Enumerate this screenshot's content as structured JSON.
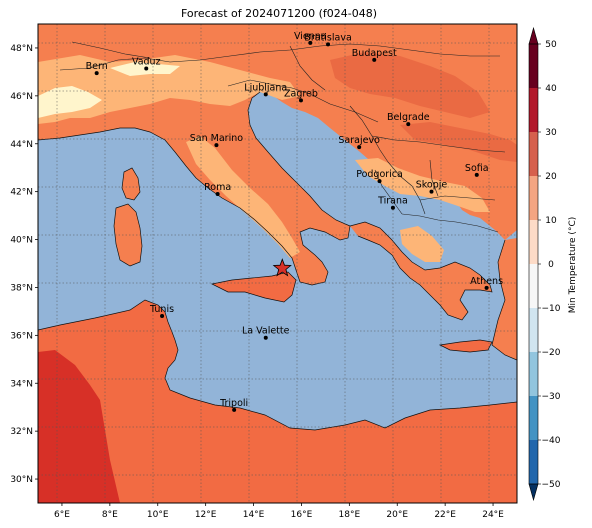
{
  "title": "Forecast of 2024071200 (f024-048)",
  "map": {
    "lon_range": [
      5,
      25
    ],
    "lat_range": [
      29,
      49
    ],
    "x_ticks": [
      "6°E",
      "8°E",
      "10°E",
      "12°E",
      "14°E",
      "16°E",
      "18°E",
      "20°E",
      "22°E",
      "24°E"
    ],
    "y_ticks": [
      "30°N",
      "32°N",
      "34°N",
      "36°N",
      "38°N",
      "40°N",
      "42°N",
      "44°N",
      "46°N",
      "48°N"
    ],
    "grid": "dotted",
    "sea_color": "#92b4d8",
    "marker": {
      "symbol": "star",
      "lon": 15.2,
      "lat": 38.8,
      "color": "#d73027"
    }
  },
  "cities": [
    {
      "name": "Bern",
      "lon": 7.45,
      "lat": 46.95
    },
    {
      "name": "Vaduz",
      "lon": 9.52,
      "lat": 47.14
    },
    {
      "name": "Vienna",
      "lon": 16.37,
      "lat": 48.21
    },
    {
      "name": "Bratislava",
      "lon": 17.11,
      "lat": 48.15
    },
    {
      "name": "Budapest",
      "lon": 19.04,
      "lat": 47.5
    },
    {
      "name": "Ljubljana",
      "lon": 14.51,
      "lat": 46.06
    },
    {
      "name": "Zagreb",
      "lon": 15.98,
      "lat": 45.81
    },
    {
      "name": "Belgrade",
      "lon": 20.46,
      "lat": 44.82
    },
    {
      "name": "San Marino",
      "lon": 12.45,
      "lat": 43.94
    },
    {
      "name": "Sarajevo",
      "lon": 18.41,
      "lat": 43.86
    },
    {
      "name": "Sofia",
      "lon": 23.32,
      "lat": 42.7
    },
    {
      "name": "Podgorica",
      "lon": 19.26,
      "lat": 42.44
    },
    {
      "name": "Skopje",
      "lon": 21.43,
      "lat": 42.0
    },
    {
      "name": "Roma",
      "lon": 12.5,
      "lat": 41.9
    },
    {
      "name": "Tirana",
      "lon": 19.82,
      "lat": 41.33
    },
    {
      "name": "Athens",
      "lon": 23.73,
      "lat": 37.98
    },
    {
      "name": "Tunis",
      "lon": 10.18,
      "lat": 36.81
    },
    {
      "name": "La Valette",
      "lon": 14.51,
      "lat": 35.9
    },
    {
      "name": "Tripoli",
      "lon": 13.19,
      "lat": 32.89
    }
  ],
  "colorbar": {
    "label": "Min Temperature (°C)",
    "ticks": [
      "50",
      "40",
      "30",
      "20",
      "10",
      "0",
      "−10",
      "−20",
      "−30",
      "−40",
      "−50"
    ],
    "colors": [
      "#67001f",
      "#b2182b",
      "#d6604d",
      "#f4a582",
      "#fddbc7",
      "#f7f7f7",
      "#d1e5f0",
      "#92c5de",
      "#4393c3",
      "#2166ac",
      "#053061"
    ]
  },
  "temperature_colors": {
    "band_10_15": "#fff5cc",
    "band_15_20": "#fdb577",
    "band_20_25": "#f57f4f",
    "band_25_30": "#ea6a43",
    "band_30_35": "#d73027"
  }
}
